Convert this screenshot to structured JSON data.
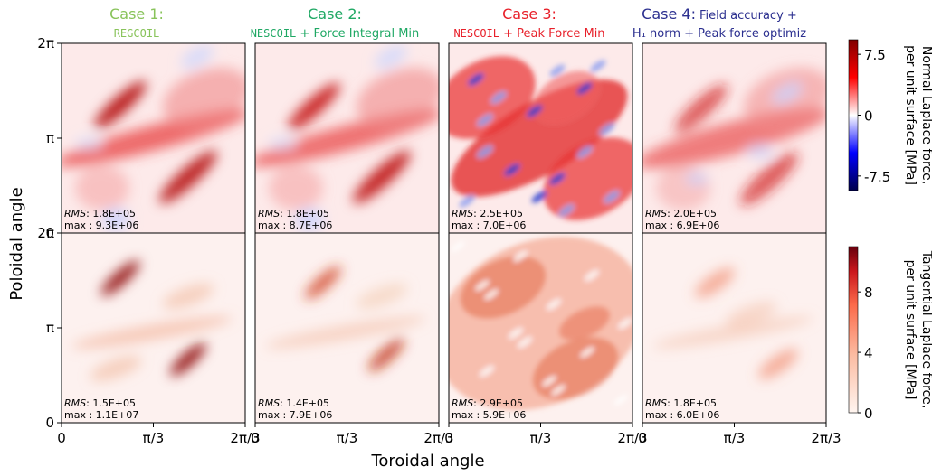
{
  "chart_data": {
    "type": "heatmap",
    "xlabel": "Toroidal angle",
    "ylabel": "Poloidal angle",
    "x_ticks": [
      "0",
      "π/3",
      "2π/3"
    ],
    "y_ticks": [
      "0",
      "π",
      "2π"
    ],
    "xlim": [
      0,
      2.0944
    ],
    "ylim": [
      0,
      6.2832
    ],
    "grid": false,
    "cases": [
      {
        "title": "Case 1:",
        "subtitle": [
          {
            "text": "REGCOIL",
            "mono": true
          }
        ],
        "title_color": "#88c35a",
        "metrics": {
          "normal": {
            "rms_label": "RMS",
            "rms": "1.8E+05",
            "max_label": "max",
            "max": "9.3E+06"
          },
          "tangential": {
            "rms_label": "RMS",
            "rms": "1.5E+05",
            "max_label": "max",
            "max": "1.1E+07"
          }
        }
      },
      {
        "title": "Case 2:",
        "subtitle": [
          {
            "text": "NESCOIL",
            "mono": true
          },
          {
            "text": " + Force Integral Min",
            "mono": false
          }
        ],
        "title_color": "#1fa864",
        "metrics": {
          "normal": {
            "rms_label": "RMS",
            "rms": "1.8E+05",
            "max_label": "max",
            "max": "8.7E+06"
          },
          "tangential": {
            "rms_label": "RMS",
            "rms": "1.4E+05",
            "max_label": "max",
            "max": "7.9E+06"
          }
        }
      },
      {
        "title": "Case 3:",
        "subtitle": [
          {
            "text": "NESCOIL",
            "mono": true
          },
          {
            "text": " + Peak Force Min",
            "mono": false
          }
        ],
        "title_color": "#e8202a",
        "metrics": {
          "normal": {
            "rms_label": "RMS",
            "rms": "2.5E+05",
            "max_label": "max",
            "max": "7.0E+06"
          },
          "tangential": {
            "rms_label": "RMS",
            "rms": "2.9E+05",
            "max_label": "max",
            "max": "5.9E+06"
          }
        }
      },
      {
        "title": "Case 4:",
        "title_extra": "Field accuracy +",
        "subtitle": [
          {
            "text": "H₁ norm + Peak force optimiz",
            "mono": false
          }
        ],
        "title_color": "#2b2f8f",
        "metrics": {
          "normal": {
            "rms_label": "RMS",
            "rms": "2.0E+05",
            "max_label": "max",
            "max": "6.9E+06"
          },
          "tangential": {
            "rms_label": "RMS",
            "rms": "1.8E+05",
            "max_label": "max",
            "max": "6.0E+06"
          }
        }
      }
    ],
    "colorbars": [
      {
        "label_line1": "Normal Laplace force,",
        "label_line2": "per unit surface [MPa]",
        "colormap": "seismic",
        "range": [
          -9.3,
          9.3
        ],
        "ticks": [
          {
            "v": 7.5,
            "t": "7.5"
          },
          {
            "v": 0,
            "t": "0"
          },
          {
            "v": -7.5,
            "t": "-7.5"
          }
        ]
      },
      {
        "label_line1": "Tangential Laplace force,",
        "label_line2": "per unit surface [MPa]",
        "colormap": "reds",
        "range": [
          0,
          11
        ],
        "ticks": [
          {
            "v": 8,
            "t": "8"
          },
          {
            "v": 4,
            "t": "4"
          },
          {
            "v": 0,
            "t": "0"
          }
        ]
      }
    ]
  }
}
